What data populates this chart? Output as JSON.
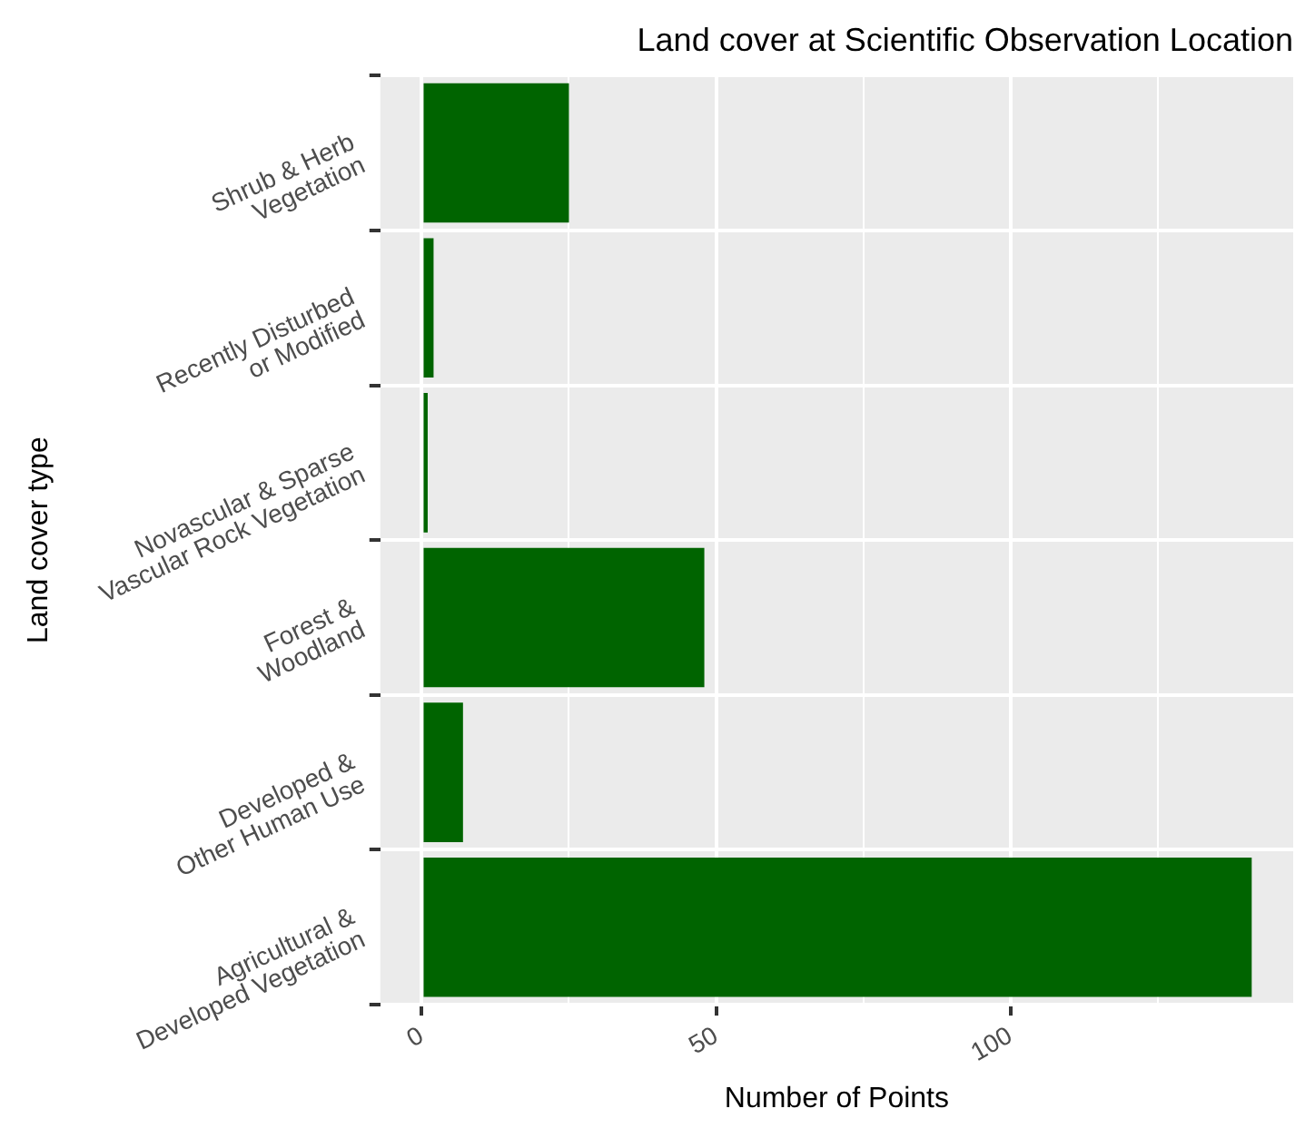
{
  "chart_data": {
    "type": "bar",
    "orientation": "horizontal",
    "title": "Land cover at Scientific Observation Location",
    "xlabel": "Number of Points",
    "ylabel": "Land cover type",
    "categories": [
      "Shrub & Herb\nVegetation",
      "Recently Disturbed\nor Modified",
      "Novascular & Sparse\nVascular Rock Vegetation",
      "Forest &\nWoodland",
      "Developed &\nOther Human Use",
      "Agricultural &\nDeveloped Vegetation"
    ],
    "values": [
      25,
      2,
      1,
      48,
      7,
      141
    ],
    "color": "#006400",
    "xlim": [
      -7.05,
      148.05
    ],
    "xticks": [
      0,
      {
        "value": 25,
        "label": null
      },
      50,
      {
        "value": 75,
        "label": null
      },
      100,
      {
        "value": 125,
        "label": null
      }
    ],
    "grid": true,
    "legend": false
  }
}
